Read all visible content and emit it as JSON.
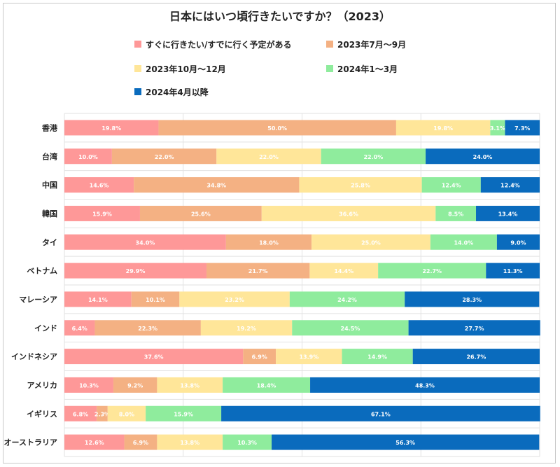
{
  "chart_data": {
    "type": "bar",
    "orientation": "horizontal-stacked-100",
    "title": "日本にはいつ頃行きたいですか？（2023）",
    "xlim": [
      0,
      100
    ],
    "grid": true,
    "legend_position": "top",
    "categories": [
      "香港",
      "台湾",
      "中国",
      "韓国",
      "タイ",
      "ベトナム",
      "マレーシア",
      "インド",
      "インドネシア",
      "アメリカ",
      "イギリス",
      "オーストラリア"
    ],
    "series": [
      {
        "name": "すぐに行きたい/すでに行く予定がある",
        "color": "#fe9898",
        "values": [
          19.8,
          10.0,
          14.6,
          15.9,
          34.0,
          29.9,
          14.1,
          6.4,
          37.6,
          10.3,
          6.8,
          12.6
        ],
        "labels": [
          "19.8%",
          "10.0%",
          "14.6%",
          "15.9%",
          "34.0%",
          "29.9%",
          "14.1%",
          "6.4%",
          "37.6%",
          "10.3%",
          "6.8%",
          "12.6%"
        ]
      },
      {
        "name": "2023年7月～9月",
        "color": "#f4b183",
        "values": [
          50.0,
          22.0,
          34.8,
          25.6,
          18.0,
          21.7,
          10.1,
          22.3,
          6.9,
          9.2,
          2.3,
          6.9
        ],
        "labels": [
          "50.0%",
          "22.0%",
          "34.8%",
          "25.6%",
          "18.0%",
          "21.7%",
          "10.1%",
          "22.3%",
          "6.9%",
          "9.2%",
          "2.3%",
          "6.9%"
        ]
      },
      {
        "name": "2023年10月～12月",
        "color": "#ffe699",
        "values": [
          19.8,
          22.0,
          25.8,
          36.6,
          25.0,
          14.4,
          23.2,
          19.2,
          13.9,
          13.8,
          8.0,
          13.8
        ],
        "labels": [
          "19.8%",
          "22.0%",
          "25.8%",
          "36.6%",
          "25.0%",
          "14.4%",
          "23.2%",
          "19.2%",
          "13.9%",
          "13.8%",
          "8.0%",
          "13.8%"
        ]
      },
      {
        "name": "2024年1～3月",
        "color": "#8fec9d",
        "values": [
          3.1,
          22.0,
          12.4,
          8.5,
          14.0,
          22.7,
          24.2,
          24.5,
          14.9,
          18.4,
          15.9,
          10.3
        ],
        "labels": [
          "3.1%",
          "22.0%",
          "12.4%",
          "8.5%",
          "14.0%",
          "22.7%",
          "24.2%",
          "24.5%",
          "14.9%",
          "18.4%",
          "15.9%",
          "10.3%"
        ]
      },
      {
        "name": "2024年4月以降",
        "color": "#0a6bbd",
        "values": [
          7.3,
          24.0,
          12.4,
          13.4,
          9.0,
          11.3,
          28.3,
          27.7,
          26.7,
          48.3,
          67.1,
          56.3
        ],
        "labels": [
          "7.3%",
          "24.0%",
          "12.4%",
          "13.4%",
          "9.0%",
          "11.3%",
          "28.3%",
          "27.7%",
          "26.7%",
          "48.3%",
          "67.1%",
          "56.3%"
        ]
      }
    ]
  }
}
